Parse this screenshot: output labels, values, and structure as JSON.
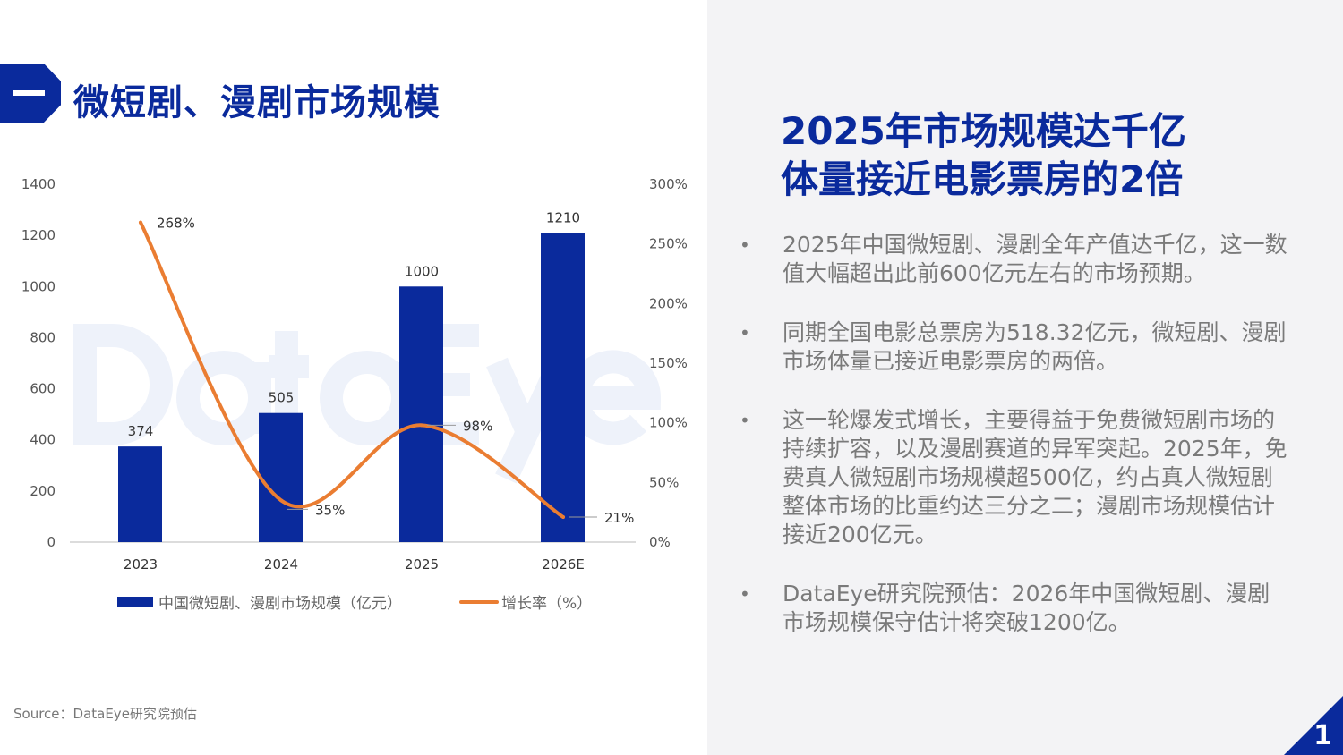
{
  "section": {
    "badge_icon": "dash-icon",
    "title": "微短剧、漫剧市场规模"
  },
  "headline": {
    "line1": "2025年市场规模达千亿",
    "line2": "体量接近电影票房的2倍"
  },
  "bullets": [
    "2025年中国微短剧、漫剧全年产值达千亿，这一数值大幅超出此前600亿元左右的市场预期。",
    "同期全国电影总票房为518.32亿元，微短剧、漫剧市场体量已接近电影票房的两倍。",
    "这一轮爆发式增长，主要得益于免费微短剧市场的持续扩容，以及漫剧赛道的异军突起。2025年，免费真人微短剧市场规模超500亿，约占真人微短剧整体市场的比重约达三分之二；漫剧市场规模估计接近200亿元。",
    "DataEye研究院预估：2026年中国微短剧、漫剧市场规模保守估计将突破1200亿。"
  ],
  "bullet_marker": "•",
  "source": "Source：DataEye研究院预估",
  "page_number": "1",
  "watermark": "DataEye",
  "colors": {
    "brand": "#0a2a9c",
    "bar": "#0a2a9c",
    "line": "#ea7d32",
    "panel": "#f3f3f5"
  },
  "chart_data": {
    "type": "bar+line",
    "categories": [
      "2023",
      "2024",
      "2025",
      "2026E"
    ],
    "series": [
      {
        "name": "中国微短剧、漫剧市场规模（亿元）",
        "type": "bar",
        "axis": "left",
        "values": [
          374,
          505,
          1000,
          1210
        ],
        "labels": [
          "374",
          "505",
          "1000",
          "1210"
        ]
      },
      {
        "name": "增长率（%）",
        "type": "line",
        "axis": "right",
        "values": [
          268,
          35,
          98,
          21
        ],
        "labels": [
          "268%",
          "35%",
          "98%",
          "21%"
        ]
      }
    ],
    "y_left": {
      "range": [
        0,
        1400
      ],
      "ticks": [
        "0",
        "200",
        "400",
        "600",
        "800",
        "1000",
        "1200",
        "1400"
      ]
    },
    "y_right": {
      "range": [
        0,
        300
      ],
      "ticks": [
        "0%",
        "50%",
        "100%",
        "150%",
        "200%",
        "250%",
        "300%"
      ]
    },
    "grid": false,
    "legend": "bottom"
  }
}
